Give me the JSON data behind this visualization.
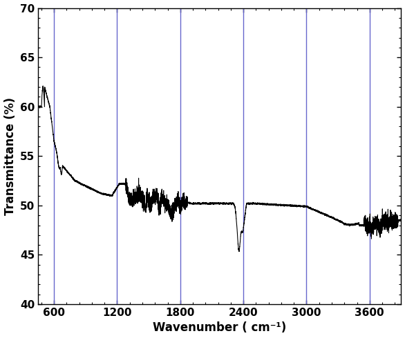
{
  "title": "",
  "xlabel": "Wavenumber ( cm⁻¹)",
  "ylabel": "Transmittance (%)",
  "xlim": [
    450,
    3900
  ],
  "ylim": [
    40,
    70
  ],
  "xticks": [
    600,
    1200,
    1800,
    2400,
    3000,
    3600
  ],
  "yticks": [
    40,
    45,
    50,
    55,
    60,
    65,
    70
  ],
  "vlines": [
    600,
    1200,
    1800,
    2400,
    3000,
    3600
  ],
  "vline_color": "#6666cc",
  "line_color": "#000000",
  "background_color": "#ffffff",
  "line_width": 0.8
}
